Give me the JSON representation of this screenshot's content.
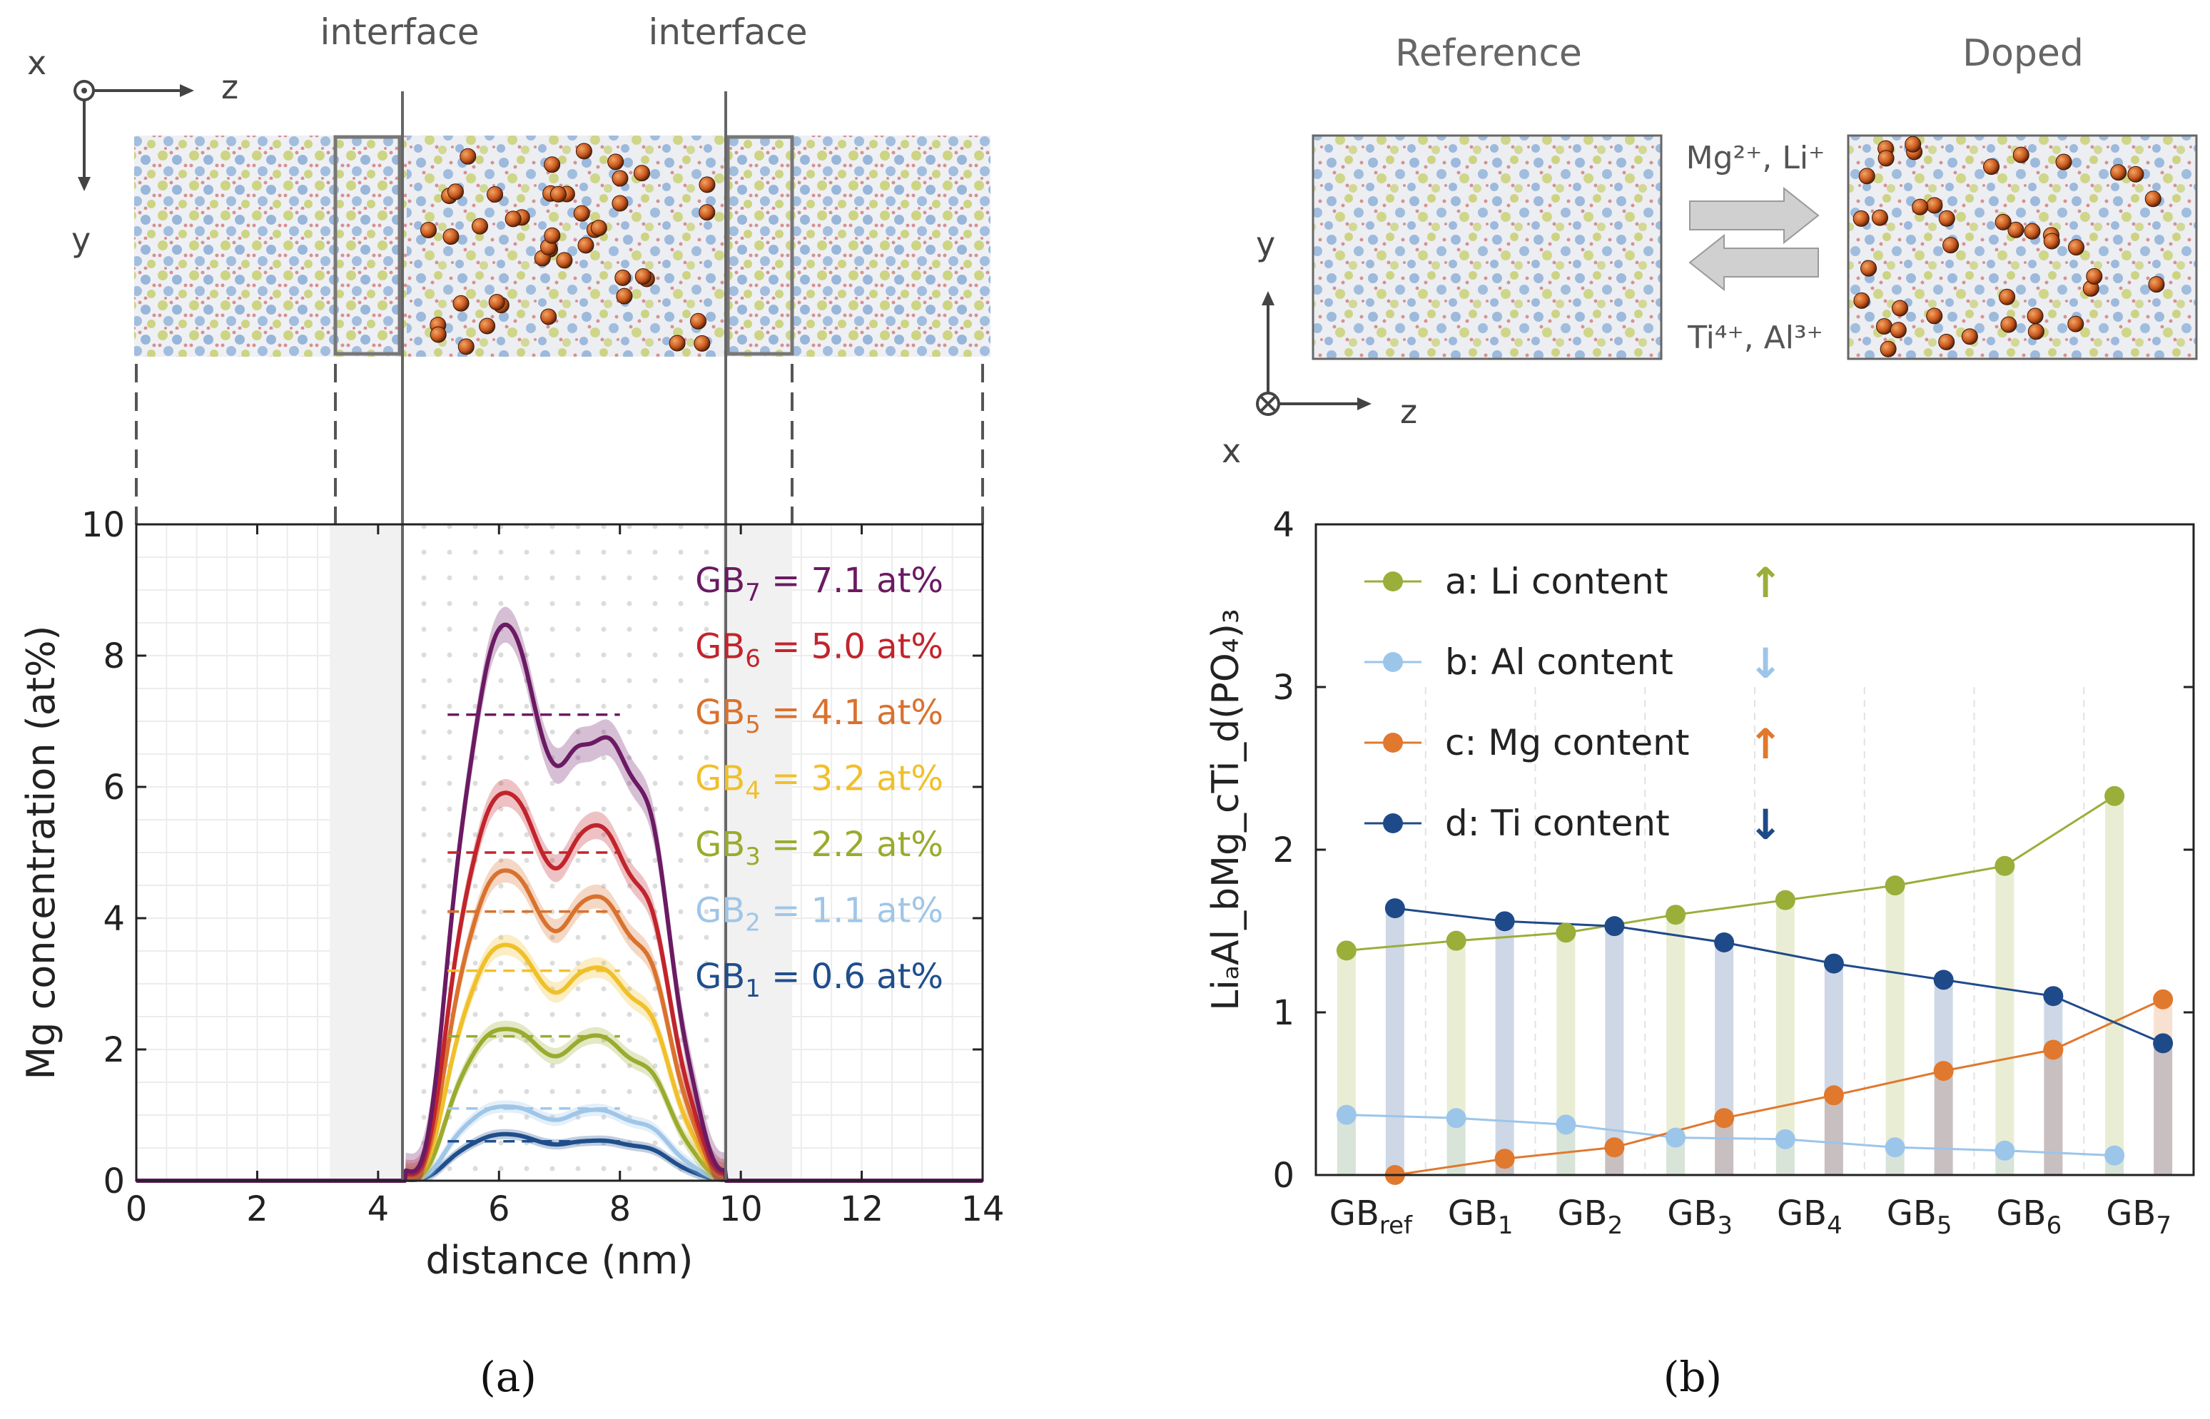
{
  "colors": {
    "GB1": "#1f4e8c",
    "GB2": "#9fc6e8",
    "GB3": "#9aab2e",
    "GB4": "#f0c02a",
    "GB5": "#d9722e",
    "GB6": "#c2242c",
    "GB7": "#6b1a63",
    "li": "#9aae3a",
    "al": "#9cc5ea",
    "mg": "#e0782e",
    "ti": "#1f4a8a",
    "crystal_yellow": "#c8cf6e",
    "crystal_blue": "#8fb0d8",
    "crystal_red": "#d89090",
    "mg_atom": "#c8571d"
  },
  "panel_a": {
    "caption": "(a)",
    "interface_labels": [
      "interface",
      "interface"
    ],
    "axes_glyph": {
      "x": "x",
      "y": "y",
      "z": "z"
    },
    "chart_data": {
      "type": "line",
      "xlabel": "distance (nm)",
      "ylabel": "Mg concentration (at%)",
      "xlim": [
        0,
        14
      ],
      "ylim": [
        0,
        10
      ],
      "xticks": [
        "0",
        "2",
        "4",
        "6",
        "8",
        "10",
        "12",
        "14"
      ],
      "yticks": [
        "0",
        "2",
        "4",
        "6",
        "8",
        "10"
      ],
      "shaded_regions_nm": [
        [
          3.2,
          4.4
        ],
        [
          9.7,
          10.85
        ]
      ],
      "interface_lines_nm": [
        4.4,
        9.7
      ],
      "series": [
        {
          "key": "GB7",
          "label_sub": "7",
          "label_rest": " = 7.1 at%",
          "mean": 7.1,
          "peaks": [
            8.6,
            6.8
          ]
        },
        {
          "key": "GB6",
          "label_sub": "6",
          "label_rest": " = 5.0 at%",
          "mean": 5.0,
          "peaks": [
            6.0,
            5.5
          ]
        },
        {
          "key": "GB5",
          "label_sub": "5",
          "label_rest": " = 4.1 at%",
          "mean": 4.1,
          "peaks": [
            4.8,
            4.4
          ]
        },
        {
          "key": "GB4",
          "label_sub": "4",
          "label_rest": " = 3.2 at%",
          "mean": 3.2,
          "peaks": [
            3.65,
            3.3
          ]
        },
        {
          "key": "GB3",
          "label_sub": "3",
          "label_rest": " = 2.2 at%",
          "mean": 2.2,
          "peaks": [
            2.35,
            2.25
          ]
        },
        {
          "key": "GB2",
          "label_sub": "2",
          "label_rest": " = 1.1 at%",
          "mean": 1.1,
          "peaks": [
            1.15,
            1.1
          ]
        },
        {
          "key": "GB1",
          "label_sub": "1",
          "label_rest": " = 0.6 at%",
          "mean": 0.6,
          "peaks": [
            0.72,
            0.62
          ]
        }
      ],
      "label_prefix": "GB"
    }
  },
  "panel_b": {
    "caption": "(b)",
    "reference_label": "Reference",
    "doped_label": "Doped",
    "arrow_top_label": "Mg²⁺, Li⁺",
    "arrow_bottom_label": "Ti⁴⁺, Al³⁺",
    "axes_glyph": {
      "x": "x",
      "y": "y",
      "z": "z"
    },
    "chart_data": {
      "type": "line",
      "ylabel": "LiₐAl_bMg_cTi_d(PO₄)₃",
      "ylim": [
        0,
        4
      ],
      "yticks": [
        "0",
        "1",
        "2",
        "3",
        "4"
      ],
      "categories": [
        "ref",
        "1",
        "2",
        "3",
        "4",
        "5",
        "6",
        "7"
      ],
      "category_prefix": "GB",
      "series": [
        {
          "key": "li",
          "name": "a: Li content",
          "arrow": "↑",
          "values": [
            1.38,
            1.44,
            1.49,
            1.6,
            1.69,
            1.78,
            1.9,
            2.33
          ]
        },
        {
          "key": "al",
          "name": "b: Al content",
          "arrow": "↓",
          "values": [
            0.37,
            0.35,
            0.31,
            0.23,
            0.22,
            0.17,
            0.15,
            0.12
          ]
        },
        {
          "key": "mg",
          "name": "c: Mg content",
          "arrow": "↑",
          "values": [
            0.0,
            0.1,
            0.17,
            0.35,
            0.49,
            0.64,
            0.77,
            1.08
          ]
        },
        {
          "key": "ti",
          "name": "d: Ti content",
          "arrow": "↓",
          "values": [
            1.64,
            1.56,
            1.53,
            1.43,
            1.3,
            1.2,
            1.1,
            0.81
          ]
        }
      ]
    }
  }
}
